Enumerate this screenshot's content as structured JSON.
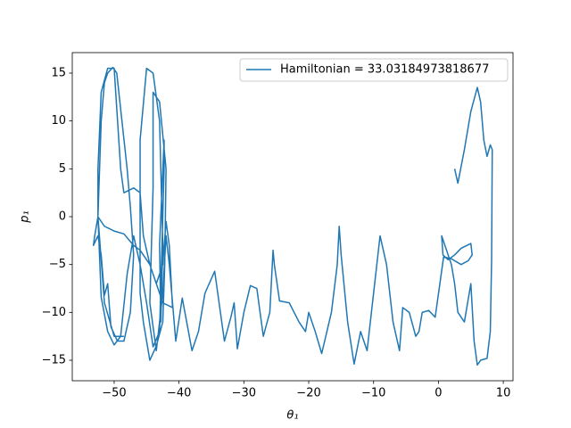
{
  "chart_data": {
    "type": "line",
    "xlabel": "θ₁",
    "ylabel": "p₁",
    "xlim": [
      -56.46,
      11.5
    ],
    "ylim": [
      -17.14,
      17.14
    ],
    "xticks": [
      {
        "value": -50,
        "label": "−50"
      },
      {
        "value": -40,
        "label": "−40"
      },
      {
        "value": -30,
        "label": "−30"
      },
      {
        "value": -20,
        "label": "−20"
      },
      {
        "value": -10,
        "label": "−10"
      },
      0,
      10
    ],
    "yticks": [
      {
        "value": -15,
        "label": "−15"
      },
      {
        "value": -10,
        "label": "−10"
      },
      {
        "value": -5,
        "label": "−5"
      },
      0,
      5,
      10,
      15
    ],
    "legend": "upper right",
    "x": [
      2.5,
      3,
      4,
      5,
      6,
      6.5,
      7,
      7.5,
      8,
      8.3,
      8.2,
      8,
      7.5,
      6.5,
      6,
      5.5,
      5,
      4.5,
      4,
      3,
      2.5,
      2,
      1,
      0.5,
      0.7,
      1.5,
      2.5,
      3.5,
      5,
      5.2,
      4.6,
      3.5,
      2,
      0.8,
      -0.5,
      -1.5,
      -2.5,
      -3,
      -3.5,
      -4.5,
      -5.5,
      -6,
      -7,
      -8,
      -9,
      -10,
      -11,
      -12,
      -13,
      -14,
      -15,
      -15.3,
      -15.6,
      -16.5,
      -18,
      -19,
      -20,
      -20.5,
      -21.5,
      -23,
      -24.5,
      -25.3,
      -25.5,
      -26,
      -27,
      -28,
      -29,
      -30,
      -31,
      -31.5,
      -32,
      -33,
      -34.5,
      -36,
      -37,
      -38,
      -39.5,
      -40.5,
      -41.5,
      -42,
      -42.5,
      -43.5,
      -44.5,
      -44,
      -44,
      -43,
      -42,
      -42.2,
      -42.5,
      -43.5,
      -44.5,
      -45.5,
      -46,
      -46,
      -45,
      -44,
      -43,
      -42.5,
      -42.8,
      -43,
      -42.3,
      -42.3,
      -43,
      -44,
      -45,
      -46,
      -47,
      -48,
      -49,
      -50,
      -51,
      -52,
      -52.5,
      -52.5,
      -52,
      -51,
      -50,
      -49,
      -48.5,
      -47,
      -46,
      -45.5,
      -44.5,
      -43.5,
      -42.5,
      -42,
      -41.5,
      -41,
      -42.5,
      -43.5,
      -44.5,
      -46,
      -47,
      -48.5,
      -50,
      -51.5,
      -52.5,
      -53,
      -53.2,
      -52.5,
      -52,
      -51.5,
      -51,
      -50.5,
      -49.5,
      -48.5,
      -47.5,
      -47,
      -47.5,
      -48,
      -48.8,
      -49.6,
      -50.2,
      -51,
      -51.5,
      -52,
      -52.5,
      -51.5,
      -50,
      -48.5
    ],
    "series": [
      {
        "name": "Hamiltonian = 33.03184973818677",
        "color": "#1f77b4",
        "values": [
          5,
          3.5,
          7,
          11,
          13.5,
          12,
          8,
          6.3,
          7.5,
          7,
          -4.5,
          -12,
          -14.8,
          -15,
          -15.5,
          -13,
          -7,
          -9,
          -11,
          -10,
          -7,
          -5,
          -3,
          -2,
          -4,
          -4.5,
          -4,
          -3.3,
          -2.8,
          -4,
          -4.6,
          -5,
          -4.4,
          -4.2,
          -10.5,
          -9.8,
          -10,
          -12,
          -12.5,
          -10,
          -9.5,
          -14,
          -11,
          -5,
          -2,
          -8,
          -14,
          -12,
          -15.4,
          -11,
          -4,
          -1,
          -5,
          -10,
          -14.3,
          -12,
          -10,
          -12,
          -11,
          -9,
          -8.8,
          -5,
          -3.5,
          -10,
          -12.5,
          -7.5,
          -7.2,
          -10,
          -13.8,
          -9,
          -10.5,
          -13,
          -5.7,
          -8,
          -12,
          -14,
          -8.5,
          -13,
          -5,
          -2,
          -8,
          -14,
          -9,
          3,
          13,
          12,
          5,
          -5,
          -11,
          -13.5,
          -15,
          -11,
          -8,
          8,
          15.5,
          15,
          10,
          -3,
          -11,
          -3,
          8,
          5,
          -12,
          -13.6,
          -9,
          -5,
          -2,
          -6,
          -12.5,
          -13.4,
          -12,
          -8.4,
          0,
          5,
          13,
          15.5,
          15.5,
          5,
          2.5,
          3,
          2.5,
          -2,
          -5,
          -7,
          -5,
          -0.5,
          -3,
          -9.5,
          -9,
          -7,
          -5,
          -3.5,
          -3,
          -1.8,
          -1.5,
          -1,
          0,
          -2,
          -3,
          -2,
          -4,
          -8.2,
          -7,
          -11.5,
          -13,
          -13,
          -10,
          -4,
          1,
          5,
          10,
          15,
          15.6,
          15,
          14,
          10,
          0,
          -9,
          -12.5,
          -12.5
        ]
      }
    ]
  }
}
